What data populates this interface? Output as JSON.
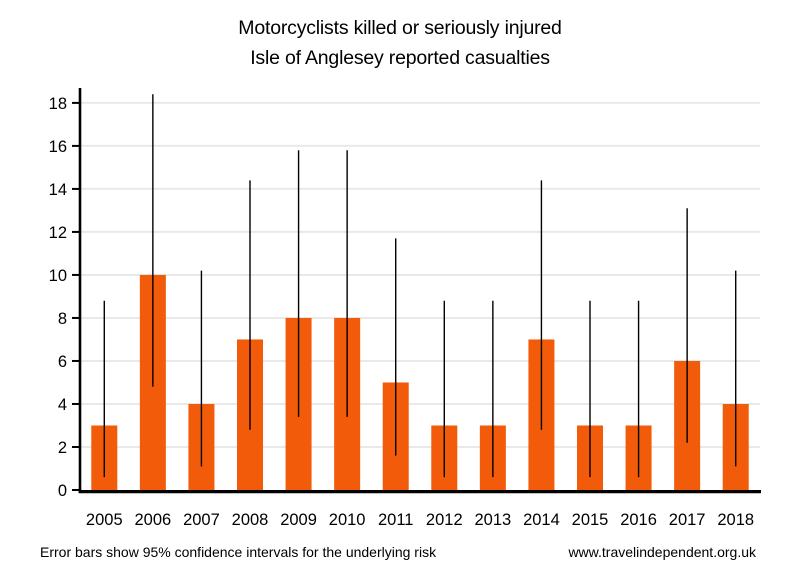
{
  "chart_data": {
    "type": "bar",
    "title": "Motorcyclists killed or seriously injured",
    "subtitle": "Isle of Anglesey reported casualties",
    "categories": [
      "2005",
      "2006",
      "2007",
      "2008",
      "2009",
      "2010",
      "2011",
      "2012",
      "2013",
      "2014",
      "2015",
      "2016",
      "2017",
      "2018"
    ],
    "values": [
      3,
      10,
      4,
      7,
      8,
      8,
      5,
      3,
      3,
      7,
      3,
      3,
      6,
      4
    ],
    "error_bars": {
      "label": "95% confidence intervals for the underlying risk",
      "low": [
        0.6,
        4.8,
        1.1,
        2.8,
        3.4,
        3.4,
        1.6,
        0.6,
        0.6,
        2.8,
        0.6,
        0.6,
        2.2,
        1.1
      ],
      "high": [
        8.8,
        18.4,
        10.2,
        14.4,
        15.8,
        15.8,
        11.7,
        8.8,
        8.8,
        14.4,
        8.8,
        8.8,
        13.1,
        10.2
      ]
    },
    "xlabel": "",
    "ylabel": "",
    "ylim": [
      0,
      18.6
    ],
    "yticks": [
      0,
      2,
      4,
      6,
      8,
      10,
      12,
      14,
      16,
      18
    ],
    "grid": "horizontal-light",
    "legend": "none"
  },
  "footer": {
    "note": "Error bars show 95% confidence intervals for the underlying risk",
    "website": "www.travelindependent.org.uk"
  },
  "colors": {
    "bar": "#F25B09",
    "error_bar": "#000000",
    "axis": "#000000",
    "gridline": "#E9E9E9",
    "text": "#000000",
    "background": "#FFFFFF"
  }
}
